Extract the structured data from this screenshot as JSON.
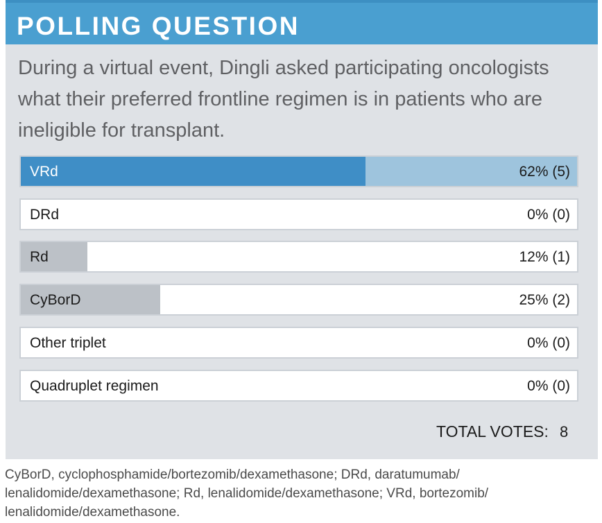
{
  "header": {
    "title": "POLLING QUESTION"
  },
  "question": "During a virtual event, Dingli asked participating oncologists what their preferred frontline regimen is in patients who are ineligible for transplant.",
  "chart_data": {
    "type": "bar",
    "orientation": "horizontal",
    "categories": [
      "VRd",
      "DRd",
      "Rd",
      "CyBorD",
      "Other triplet",
      "Quadruplet regimen"
    ],
    "values": [
      62,
      0,
      12,
      25,
      0,
      0
    ],
    "votes": [
      5,
      0,
      1,
      2,
      0,
      0
    ],
    "value_labels": [
      "62% (5)",
      "0% (0)",
      "12% (1)",
      "25% (2)",
      "0% (0)",
      "0% (0)"
    ],
    "unit": "%",
    "xlim": [
      0,
      100
    ],
    "colors": {
      "leader": "#3f8ec6",
      "leader_track": "#9ec4dd",
      "other": "#bcc1c7"
    }
  },
  "total": {
    "label": "TOTAL VOTES:",
    "value": "8"
  },
  "footnote": "CyBorD, cyclophosphamide/bortezomib/dexamethasone; DRd, daratumumab/ lenalidomide/dexamethasone; Rd, lenalidomide/dexamethasone; VRd, bortezomib/ lenalidomide/dexamethasone."
}
